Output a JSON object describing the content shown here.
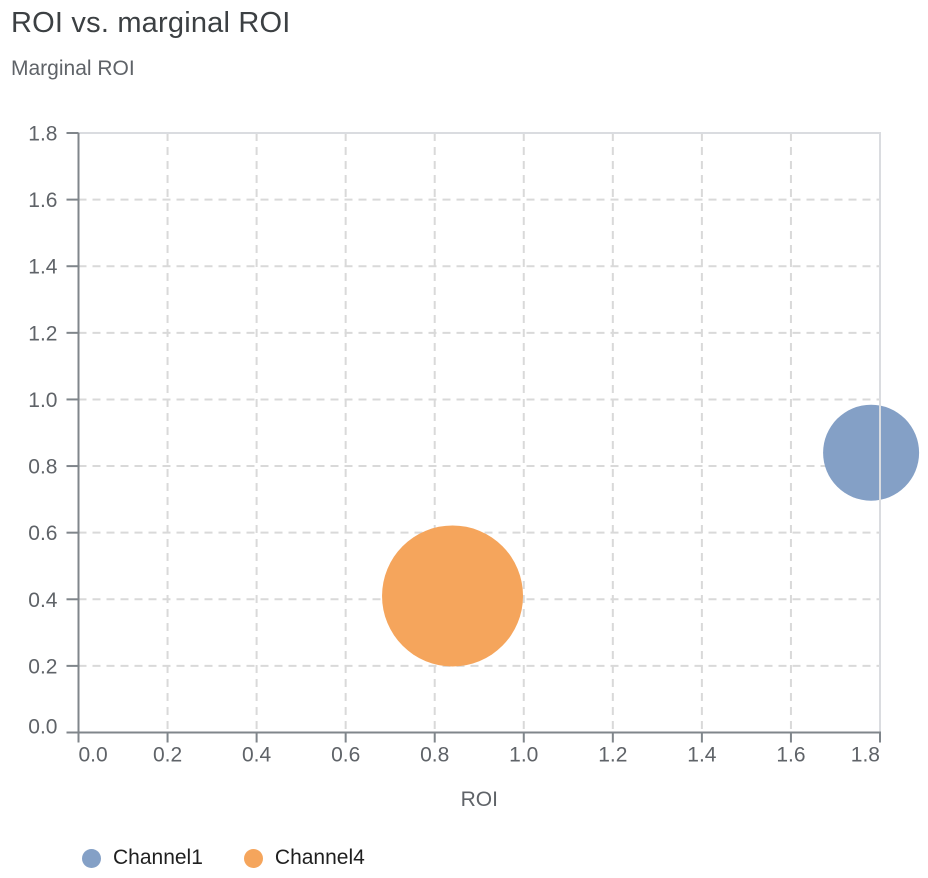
{
  "chart_data": {
    "type": "scatter",
    "title": "ROI vs. marginal ROI",
    "subtitle": "Marginal ROI",
    "xlabel": "ROI",
    "ylabel": "Marginal ROI",
    "xlim": [
      0,
      1.8
    ],
    "ylim": [
      0,
      1.8
    ],
    "x_ticks": [
      0,
      0.2,
      0.4,
      0.6,
      0.8,
      1.0,
      1.2,
      1.4,
      1.6,
      1.8
    ],
    "y_ticks": [
      0,
      0.2,
      0.4,
      0.6,
      0.8,
      1.0,
      1.2,
      1.4,
      1.6,
      1.8
    ],
    "grid": "dashed",
    "legend_position": "bottom",
    "series": [
      {
        "name": "Channel1",
        "color": "#84A0C6",
        "points": [
          {
            "x": 1.78,
            "y": 0.84,
            "radius_px": 48
          }
        ]
      },
      {
        "name": "Channel4",
        "color": "#F5A55C",
        "points": [
          {
            "x": 0.84,
            "y": 0.41,
            "radius_px": 70.5
          }
        ]
      }
    ]
  },
  "colors": {
    "background": "#FFFFFF",
    "title": "#3C4043",
    "muted_text": "#5F6368",
    "legend_text": "#1F1F1F",
    "axis": "#80868B",
    "grid": "#D9D9D9",
    "border": "#DADCE0"
  }
}
